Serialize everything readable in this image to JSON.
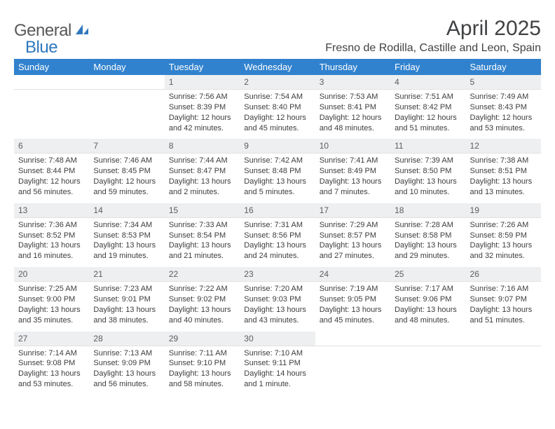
{
  "logo": {
    "gray": "General",
    "blue": "Blue"
  },
  "title": "April 2025",
  "location": "Fresno de Rodilla, Castille and Leon, Spain",
  "header_color": "#3182ce",
  "daynum_bg": "#eeeff1",
  "day_names": [
    "Sunday",
    "Monday",
    "Tuesday",
    "Wednesday",
    "Thursday",
    "Friday",
    "Saturday"
  ],
  "weeks": [
    {
      "nums": [
        "",
        "",
        "1",
        "2",
        "3",
        "4",
        "5"
      ],
      "cells": [
        null,
        null,
        {
          "sunrise": "7:56 AM",
          "sunset": "8:39 PM",
          "daylight": "12 hours and 42 minutes."
        },
        {
          "sunrise": "7:54 AM",
          "sunset": "8:40 PM",
          "daylight": "12 hours and 45 minutes."
        },
        {
          "sunrise": "7:53 AM",
          "sunset": "8:41 PM",
          "daylight": "12 hours and 48 minutes."
        },
        {
          "sunrise": "7:51 AM",
          "sunset": "8:42 PM",
          "daylight": "12 hours and 51 minutes."
        },
        {
          "sunrise": "7:49 AM",
          "sunset": "8:43 PM",
          "daylight": "12 hours and 53 minutes."
        }
      ]
    },
    {
      "nums": [
        "6",
        "7",
        "8",
        "9",
        "10",
        "11",
        "12"
      ],
      "cells": [
        {
          "sunrise": "7:48 AM",
          "sunset": "8:44 PM",
          "daylight": "12 hours and 56 minutes."
        },
        {
          "sunrise": "7:46 AM",
          "sunset": "8:45 PM",
          "daylight": "12 hours and 59 minutes."
        },
        {
          "sunrise": "7:44 AM",
          "sunset": "8:47 PM",
          "daylight": "13 hours and 2 minutes."
        },
        {
          "sunrise": "7:42 AM",
          "sunset": "8:48 PM",
          "daylight": "13 hours and 5 minutes."
        },
        {
          "sunrise": "7:41 AM",
          "sunset": "8:49 PM",
          "daylight": "13 hours and 7 minutes."
        },
        {
          "sunrise": "7:39 AM",
          "sunset": "8:50 PM",
          "daylight": "13 hours and 10 minutes."
        },
        {
          "sunrise": "7:38 AM",
          "sunset": "8:51 PM",
          "daylight": "13 hours and 13 minutes."
        }
      ]
    },
    {
      "nums": [
        "13",
        "14",
        "15",
        "16",
        "17",
        "18",
        "19"
      ],
      "cells": [
        {
          "sunrise": "7:36 AM",
          "sunset": "8:52 PM",
          "daylight": "13 hours and 16 minutes."
        },
        {
          "sunrise": "7:34 AM",
          "sunset": "8:53 PM",
          "daylight": "13 hours and 19 minutes."
        },
        {
          "sunrise": "7:33 AM",
          "sunset": "8:54 PM",
          "daylight": "13 hours and 21 minutes."
        },
        {
          "sunrise": "7:31 AM",
          "sunset": "8:56 PM",
          "daylight": "13 hours and 24 minutes."
        },
        {
          "sunrise": "7:29 AM",
          "sunset": "8:57 PM",
          "daylight": "13 hours and 27 minutes."
        },
        {
          "sunrise": "7:28 AM",
          "sunset": "8:58 PM",
          "daylight": "13 hours and 29 minutes."
        },
        {
          "sunrise": "7:26 AM",
          "sunset": "8:59 PM",
          "daylight": "13 hours and 32 minutes."
        }
      ]
    },
    {
      "nums": [
        "20",
        "21",
        "22",
        "23",
        "24",
        "25",
        "26"
      ],
      "cells": [
        {
          "sunrise": "7:25 AM",
          "sunset": "9:00 PM",
          "daylight": "13 hours and 35 minutes."
        },
        {
          "sunrise": "7:23 AM",
          "sunset": "9:01 PM",
          "daylight": "13 hours and 38 minutes."
        },
        {
          "sunrise": "7:22 AM",
          "sunset": "9:02 PM",
          "daylight": "13 hours and 40 minutes."
        },
        {
          "sunrise": "7:20 AM",
          "sunset": "9:03 PM",
          "daylight": "13 hours and 43 minutes."
        },
        {
          "sunrise": "7:19 AM",
          "sunset": "9:05 PM",
          "daylight": "13 hours and 45 minutes."
        },
        {
          "sunrise": "7:17 AM",
          "sunset": "9:06 PM",
          "daylight": "13 hours and 48 minutes."
        },
        {
          "sunrise": "7:16 AM",
          "sunset": "9:07 PM",
          "daylight": "13 hours and 51 minutes."
        }
      ]
    },
    {
      "nums": [
        "27",
        "28",
        "29",
        "30",
        "",
        "",
        ""
      ],
      "cells": [
        {
          "sunrise": "7:14 AM",
          "sunset": "9:08 PM",
          "daylight": "13 hours and 53 minutes."
        },
        {
          "sunrise": "7:13 AM",
          "sunset": "9:09 PM",
          "daylight": "13 hours and 56 minutes."
        },
        {
          "sunrise": "7:11 AM",
          "sunset": "9:10 PM",
          "daylight": "13 hours and 58 minutes."
        },
        {
          "sunrise": "7:10 AM",
          "sunset": "9:11 PM",
          "daylight": "14 hours and 1 minute."
        },
        null,
        null,
        null
      ]
    }
  ],
  "labels": {
    "sunrise": "Sunrise: ",
    "sunset": "Sunset: ",
    "daylight": "Daylight: "
  }
}
